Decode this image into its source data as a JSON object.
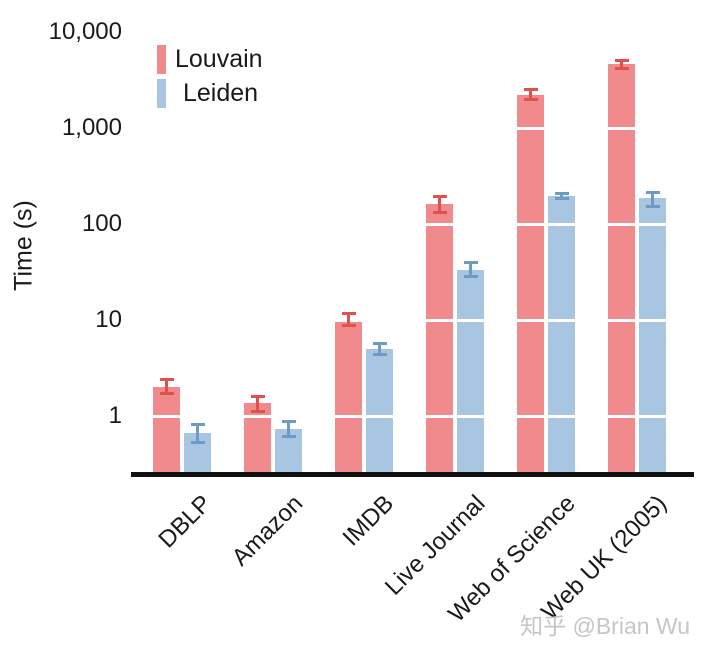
{
  "chart_data": {
    "type": "bar",
    "title": "",
    "xlabel": "",
    "ylabel": "Time (s)",
    "yscale": "log",
    "ylim": [
      0.25,
      10000
    ],
    "grid": "white horizontal lines at each decade, visible only across bars",
    "legend_position": "top-left",
    "yticks": [
      {
        "value": 1,
        "label": "1"
      },
      {
        "value": 10,
        "label": "10"
      },
      {
        "value": 100,
        "label": "100"
      },
      {
        "value": 1000,
        "label": "1,000"
      },
      {
        "value": 10000,
        "label": "10,000"
      }
    ],
    "categories": [
      "DBLP",
      "Amazon",
      "IMDB",
      "Live Journal",
      "Web of Science",
      "Web UK (2005)"
    ],
    "series": [
      {
        "name": "Louvain",
        "color": "#f08a8c",
        "error_color": "#e0514e",
        "values": [
          2.0,
          1.35,
          10,
          160,
          2200,
          4600
        ],
        "error_low": [
          1.7,
          1.1,
          8.7,
          130,
          1950,
          4150
        ],
        "error_high": [
          2.4,
          1.6,
          11.8,
          198,
          2550,
          5100
        ]
      },
      {
        "name": "Leiden",
        "color": "#a8c5e2",
        "error_color": "#6d9bc3",
        "values": [
          0.67,
          0.74,
          5.0,
          33,
          195,
          185
        ],
        "error_low": [
          0.52,
          0.61,
          4.3,
          28,
          180,
          152
        ],
        "error_high": [
          0.82,
          0.88,
          5.8,
          40,
          212,
          215
        ]
      }
    ]
  },
  "watermark": {
    "text": "知乎 @Brian Wu",
    "color": "#c6c6c6"
  }
}
